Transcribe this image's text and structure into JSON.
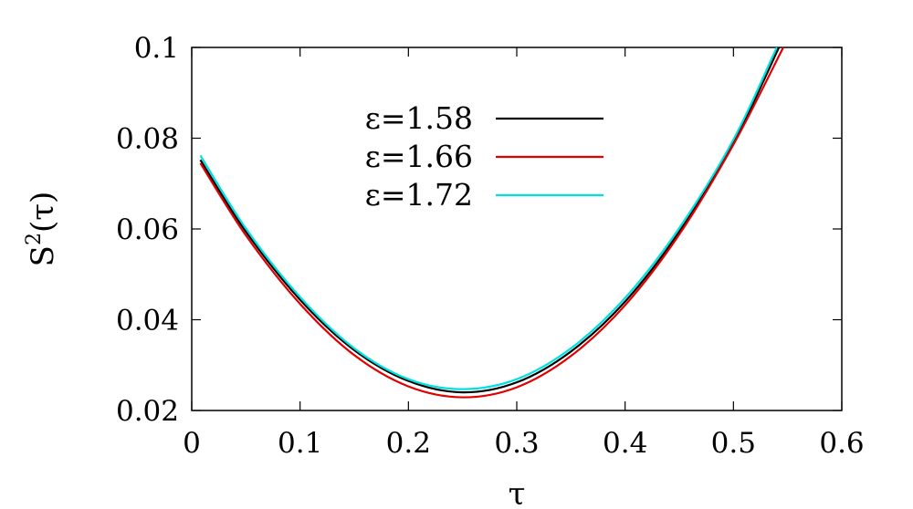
{
  "chart_data": {
    "type": "line",
    "xlabel": "τ",
    "ylabel_base": "S",
    "ylabel_sup": "2",
    "ylabel_arg": "(τ)",
    "xlim": [
      0,
      0.6
    ],
    "ylim": [
      0.02,
      0.1
    ],
    "xticks": [
      "0",
      "0.1",
      "0.2",
      "0.3",
      "0.4",
      "0.5",
      "0.6"
    ],
    "yticks": [
      "0.02",
      "0.04",
      "0.06",
      "0.08",
      "0.1"
    ],
    "legend_position": "top-center",
    "grid": false,
    "series": [
      {
        "name": "ε=1.58",
        "color": "#000000",
        "x": [
          0.008,
          0.05,
          0.1,
          0.15,
          0.2,
          0.25,
          0.3,
          0.35,
          0.4,
          0.45,
          0.5,
          0.542
        ],
        "y": [
          0.0752,
          0.0594,
          0.0444,
          0.0333,
          0.0265,
          0.024,
          0.0262,
          0.033,
          0.044,
          0.0594,
          0.079,
          0.1
        ]
      },
      {
        "name": "ε=1.66",
        "color": "#e00000",
        "x": [
          0.008,
          0.05,
          0.1,
          0.15,
          0.2,
          0.25,
          0.3,
          0.35,
          0.4,
          0.45,
          0.5,
          0.546
        ],
        "y": [
          0.0745,
          0.0586,
          0.0435,
          0.0322,
          0.0253,
          0.0229,
          0.0251,
          0.032,
          0.0432,
          0.0588,
          0.0786,
          0.1
        ]
      },
      {
        "name": "ε=1.72",
        "color": "#00e0e0",
        "x": [
          0.008,
          0.05,
          0.1,
          0.15,
          0.2,
          0.25,
          0.3,
          0.35,
          0.4,
          0.45,
          0.5,
          0.54
        ],
        "y": [
          0.0762,
          0.0601,
          0.045,
          0.0337,
          0.0269,
          0.0247,
          0.0269,
          0.0337,
          0.0448,
          0.0602,
          0.0797,
          0.1
        ]
      }
    ]
  }
}
